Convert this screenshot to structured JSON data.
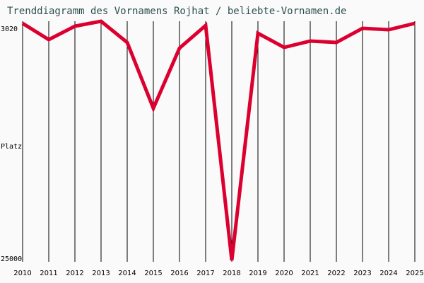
{
  "chart_data": {
    "type": "line",
    "title": "Trenddiagramm des Vornamens Rojhat / beliebte-Vornamen.de",
    "xlabel": "",
    "ylabel": "Platz",
    "y_ticks": [
      "3020",
      "25000"
    ],
    "ylim": [
      25000,
      3020
    ],
    "y_inverted": true,
    "x": [
      "2010",
      "2011",
      "2012",
      "2013",
      "2014",
      "2015",
      "2016",
      "2017",
      "2018",
      "2019",
      "2020",
      "2021",
      "2022",
      "2023",
      "2024",
      "2025"
    ],
    "series": [
      {
        "name": "Rojhat",
        "color": "#dc0030",
        "values": [
          2600,
          4000,
          2850,
          2400,
          4250,
          9800,
          4500,
          2750,
          25000,
          3450,
          4400,
          3850,
          3950,
          3000,
          3150,
          2600
        ]
      }
    ],
    "grid": true
  },
  "chart": {
    "title": "Trenddiagramm des Vornamens Rojhat / beliebte-Vornamen.de",
    "y_top_label": "3020",
    "y_mid_label": "Platz",
    "y_bottom_label": "25000",
    "years": [
      "2010",
      "2011",
      "2012",
      "2013",
      "2014",
      "2015",
      "2016",
      "2017",
      "2018",
      "2019",
      "2020",
      "2021",
      "2022",
      "2023",
      "2024",
      "2025"
    ]
  }
}
